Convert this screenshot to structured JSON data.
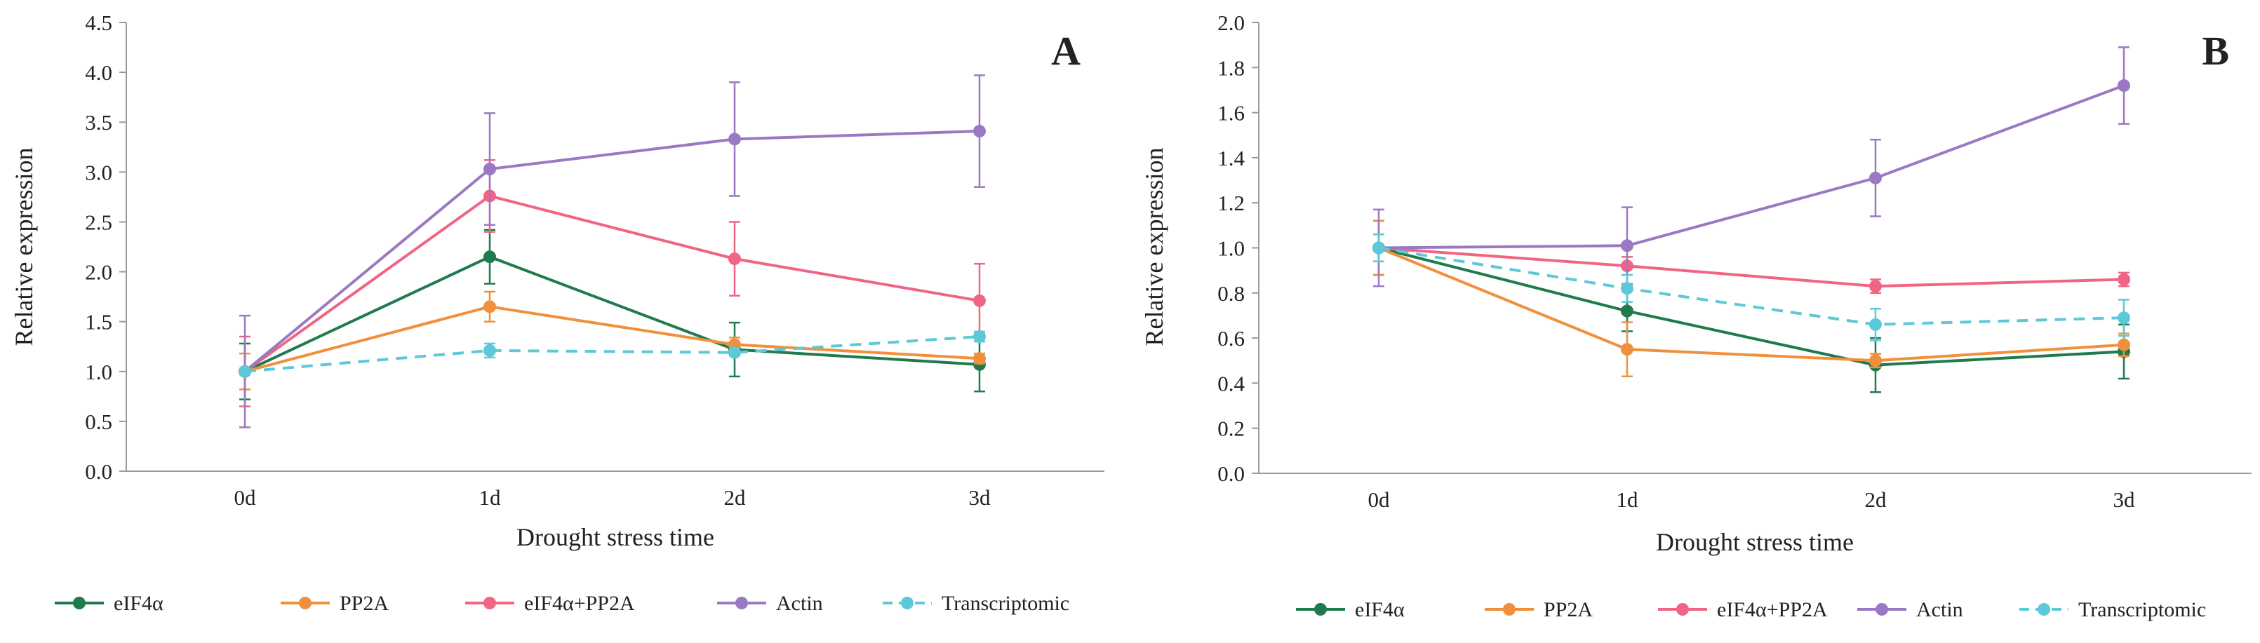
{
  "chart_data": [
    {
      "type": "line",
      "panel_label": "A",
      "xlabel": "Drought stress time",
      "ylabel": "Relative expression",
      "categories": [
        "0d",
        "1d",
        "2d",
        "3d"
      ],
      "ylim": [
        0,
        4.5
      ],
      "ytick_labels": [
        "0.0",
        "0.5",
        "1.0",
        "1.5",
        "2.0",
        "2.5",
        "3.0",
        "3.5",
        "4.0",
        "4.5"
      ],
      "grid": false,
      "legend_position": "bottom",
      "series": [
        {
          "name": "eIF4α",
          "color": "#1f7a4d",
          "dashed": false,
          "values": [
            1.0,
            2.15,
            1.22,
            1.07
          ],
          "errors": [
            0.28,
            0.27,
            0.27,
            0.27
          ]
        },
        {
          "name": "PP2A",
          "color": "#f0903c",
          "dashed": false,
          "values": [
            1.0,
            1.65,
            1.27,
            1.13
          ],
          "errors": [
            0.18,
            0.15,
            0.07,
            0.05
          ]
        },
        {
          "name": "eIF4α+PP2A",
          "color": "#f06583",
          "dashed": false,
          "values": [
            1.0,
            2.76,
            2.13,
            1.71
          ],
          "errors": [
            0.35,
            0.36,
            0.37,
            0.37
          ]
        },
        {
          "name": "Actin",
          "color": "#9b79c2",
          "dashed": false,
          "values": [
            1.0,
            3.03,
            3.33,
            3.41
          ],
          "errors": [
            0.56,
            0.56,
            0.57,
            0.56
          ]
        },
        {
          "name": "Transcriptomic",
          "color": "#5cc8d8",
          "dashed": true,
          "values": [
            1.0,
            1.21,
            1.19,
            1.35
          ],
          "errors": [
            0.03,
            0.07,
            0.03,
            0.05
          ]
        }
      ]
    },
    {
      "type": "line",
      "panel_label": "B",
      "xlabel": "Drought stress time",
      "ylabel": "Relative expression",
      "categories": [
        "0d",
        "1d",
        "2d",
        "3d"
      ],
      "ylim": [
        0,
        2.0
      ],
      "ytick_labels": [
        "0.0",
        "0.2",
        "0.4",
        "0.6",
        "0.8",
        "1.0",
        "1.2",
        "1.4",
        "1.6",
        "1.8",
        "2.0"
      ],
      "grid": false,
      "legend_position": "bottom",
      "series": [
        {
          "name": "eIF4α",
          "color": "#1f7a4d",
          "dashed": false,
          "values": [
            1.0,
            0.72,
            0.48,
            0.54
          ],
          "errors": [
            0.12,
            0.09,
            0.12,
            0.12
          ]
        },
        {
          "name": "PP2A",
          "color": "#f0903c",
          "dashed": false,
          "values": [
            1.0,
            0.55,
            0.5,
            0.57
          ],
          "errors": [
            0.12,
            0.12,
            0.03,
            0.05
          ]
        },
        {
          "name": "eIF4α+PP2A",
          "color": "#f06583",
          "dashed": false,
          "values": [
            1.0,
            0.92,
            0.83,
            0.86
          ],
          "errors": [
            0.06,
            0.04,
            0.03,
            0.03
          ]
        },
        {
          "name": "Actin",
          "color": "#9b79c2",
          "dashed": false,
          "values": [
            1.0,
            1.01,
            1.31,
            1.72
          ],
          "errors": [
            0.17,
            0.17,
            0.17,
            0.17
          ]
        },
        {
          "name": "Transcriptomic",
          "color": "#5cc8d8",
          "dashed": true,
          "values": [
            1.0,
            0.82,
            0.66,
            0.69
          ],
          "errors": [
            0.06,
            0.06,
            0.07,
            0.08
          ]
        }
      ]
    }
  ]
}
